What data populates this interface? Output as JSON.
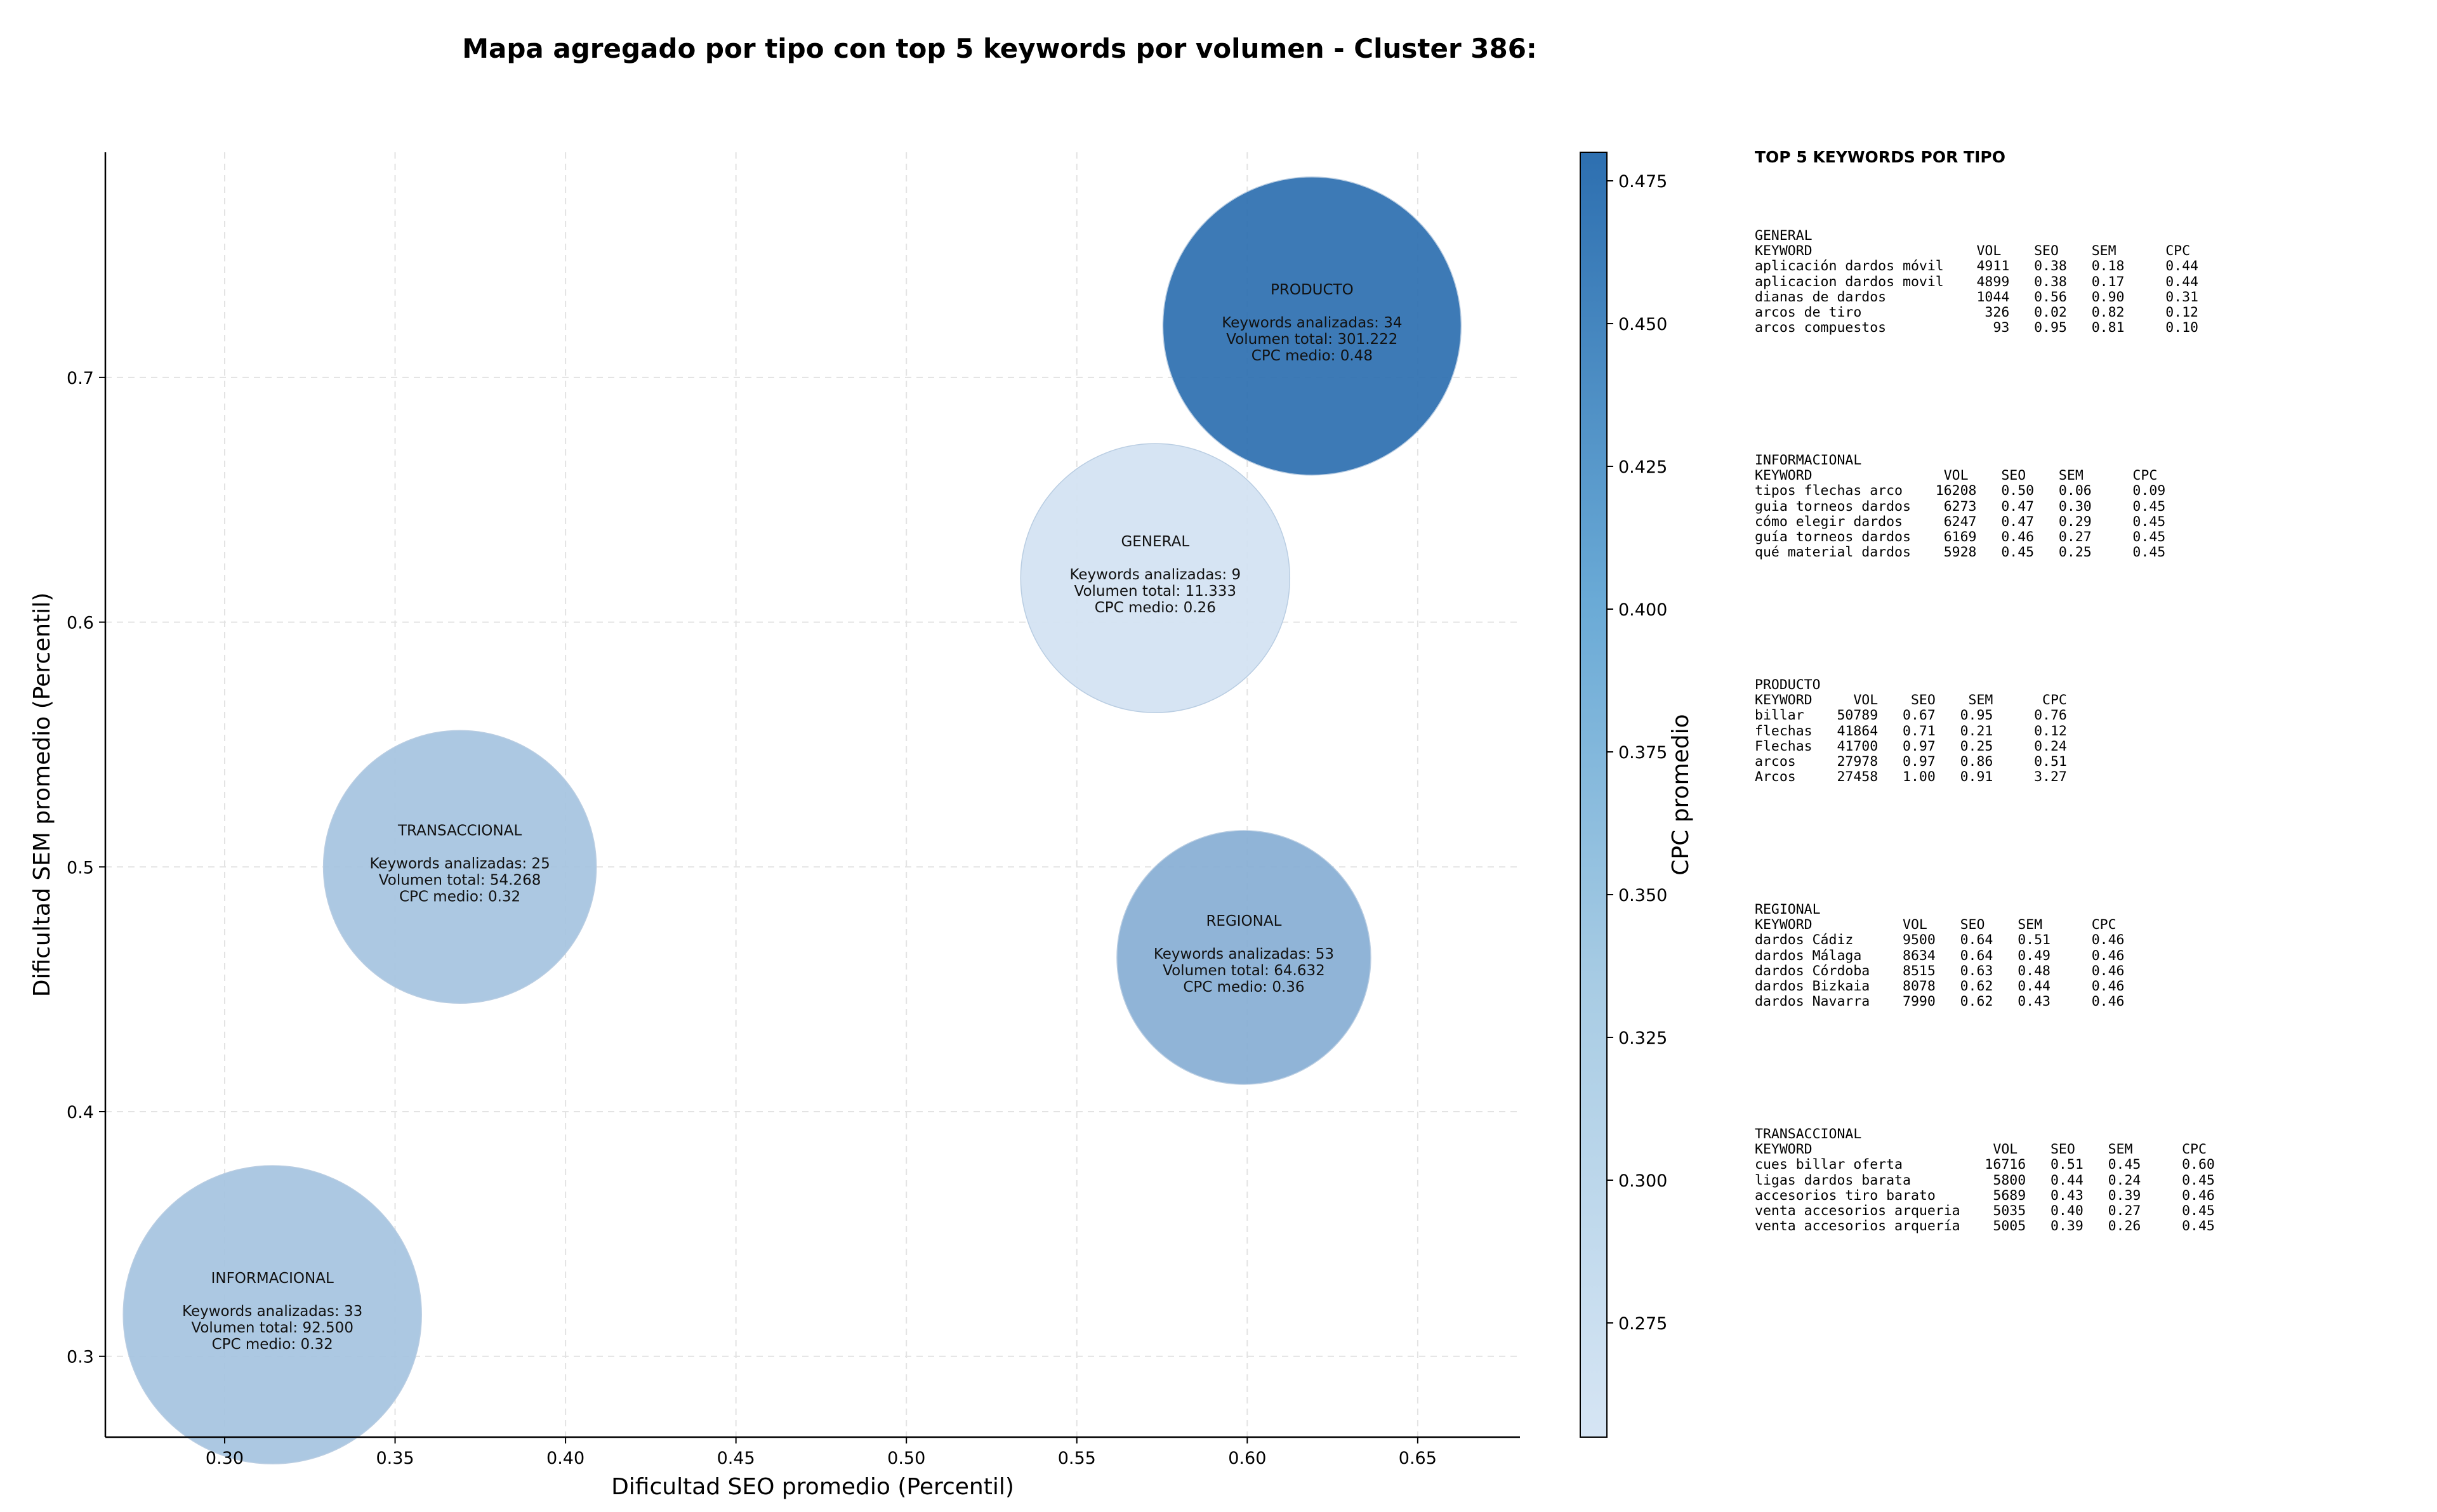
{
  "page_title": "Mapa agregado por tipo con top 5 keywords por volumen - Cluster 386:",
  "chart_data": {
    "type": "scatter",
    "title": "Mapa agregado por tipo con top 5 keywords por volumen - Cluster 386:",
    "xlabel": "Dificultad SEO promedio (Percentil)",
    "ylabel": "Dificultad SEM promedio (Percentil)",
    "xlim": [
      0.265,
      0.68
    ],
    "ylim": [
      0.267,
      0.792
    ],
    "xticks": [
      0.3,
      0.35,
      0.4,
      0.45,
      0.5,
      0.55,
      0.6,
      0.65
    ],
    "yticks": [
      0.3,
      0.4,
      0.5,
      0.6,
      0.7
    ],
    "grid": true,
    "colorbar": {
      "label": "CPC promedio",
      "range": [
        0.255,
        0.48
      ],
      "ticks": [
        0.275,
        0.3,
        0.325,
        0.35,
        0.375,
        0.4,
        0.425,
        0.45,
        0.475
      ],
      "colormap": [
        "#d6e5f4",
        "#2d6fb0"
      ]
    },
    "points": [
      {
        "label": "PRODUCTO",
        "x": 0.619,
        "y": 0.721,
        "keywords": 34,
        "volume": 301222,
        "cpc": 0.48,
        "line1": "Keywords analizadas: 34",
        "line2": "Volumen total: 301.222",
        "line3": "CPC medio: 0.48"
      },
      {
        "label": "GENERAL",
        "x": 0.573,
        "y": 0.618,
        "keywords": 9,
        "volume": 11333,
        "cpc": 0.26,
        "line1": "Keywords analizadas: 9",
        "line2": "Volumen total: 11.333",
        "line3": "CPC medio: 0.26"
      },
      {
        "label": "TRANSACCIONAL",
        "x": 0.369,
        "y": 0.5,
        "keywords": 25,
        "volume": 54268,
        "cpc": 0.32,
        "line1": "Keywords analizadas: 25",
        "line2": "Volumen total: 54.268",
        "line3": "CPC medio: 0.32"
      },
      {
        "label": "REGIONAL",
        "x": 0.599,
        "y": 0.463,
        "keywords": 53,
        "volume": 64632,
        "cpc": 0.36,
        "line1": "Keywords analizadas: 53",
        "line2": "Volumen total: 64.632",
        "line3": "CPC medio: 0.36"
      },
      {
        "label": "INFORMACIONAL",
        "x": 0.314,
        "y": 0.317,
        "keywords": 33,
        "volume": 92500,
        "cpc": 0.32,
        "line1": "Keywords analizadas: 33",
        "line2": "Volumen total: 92.500",
        "line3": "CPC medio: 0.32"
      }
    ]
  },
  "side_panel": {
    "title": "TOP 5 KEYWORDS POR TIPO",
    "blocks": [
      {
        "name": "GENERAL",
        "text": "GENERAL\nKEYWORD                    VOL    SEO    SEM      CPC\naplicación dardos móvil    4911   0.38   0.18     0.44\naplicacion dardos movil    4899   0.38   0.17     0.44\ndianas de dardos           1044   0.56   0.90     0.31\narcos de tiro               326   0.02   0.82     0.12\narcos compuestos             93   0.95   0.81     0.10"
      },
      {
        "name": "INFORMACIONAL",
        "text": "INFORMACIONAL\nKEYWORD                VOL    SEO    SEM      CPC\ntipos flechas arco    16208   0.50   0.06     0.09\nguia torneos dardos    6273   0.47   0.30     0.45\ncómo elegir dardos     6247   0.47   0.29     0.45\nguía torneos dardos    6169   0.46   0.27     0.45\nqué material dardos    5928   0.45   0.25     0.45"
      },
      {
        "name": "PRODUCTO",
        "text": "PRODUCTO\nKEYWORD     VOL    SEO    SEM      CPC\nbillar    50789   0.67   0.95     0.76\nflechas   41864   0.71   0.21     0.12\nFlechas   41700   0.97   0.25     0.24\narcos     27978   0.97   0.86     0.51\nArcos     27458   1.00   0.91     3.27"
      },
      {
        "name": "REGIONAL",
        "text": "REGIONAL\nKEYWORD           VOL    SEO    SEM      CPC\ndardos Cádiz      9500   0.64   0.51     0.46\ndardos Málaga     8634   0.64   0.49     0.46\ndardos Córdoba    8515   0.63   0.48     0.46\ndardos Bizkaia    8078   0.62   0.44     0.46\ndardos Navarra    7990   0.62   0.43     0.46"
      },
      {
        "name": "TRANSACCIONAL",
        "text": "TRANSACCIONAL\nKEYWORD                      VOL    SEO    SEM      CPC\ncues billar oferta          16716   0.51   0.45     0.60\nligas dardos barata          5800   0.44   0.24     0.45\naccesorios tiro barato       5689   0.43   0.39     0.46\nventa accesorios arqueria    5035   0.40   0.27     0.45\nventa accesorios arquería    5005   0.39   0.26     0.45"
      }
    ]
  }
}
